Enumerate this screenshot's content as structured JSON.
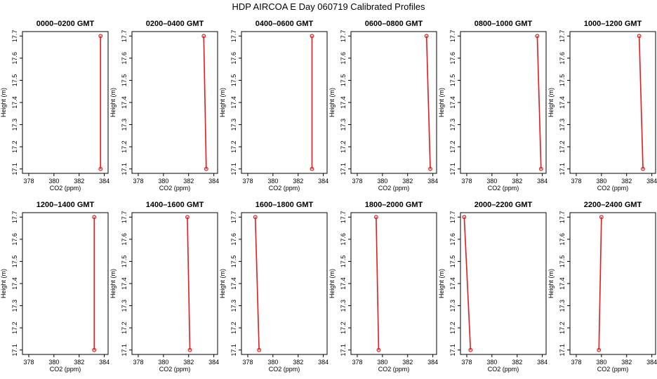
{
  "title": "HDP  AIRCOA E  Day 060719  Calibrated Profiles",
  "chart_data": [
    {
      "type": "line",
      "title": "0000–0200 GMT",
      "xlabel": "CO2 (ppm)",
      "ylabel": "Height (m)",
      "x": [
        383.7,
        383.7
      ],
      "y": [
        17.1,
        17.7
      ],
      "xlim": [
        377.5,
        384.3
      ],
      "ylim": [
        17.08,
        17.72
      ]
    },
    {
      "type": "line",
      "title": "0200–0400 GMT",
      "xlabel": "CO2 (ppm)",
      "ylabel": "Height (m)",
      "x": [
        383.4,
        383.2
      ],
      "y": [
        17.1,
        17.7
      ],
      "xlim": [
        377.5,
        384.3
      ],
      "ylim": [
        17.08,
        17.72
      ]
    },
    {
      "type": "line",
      "title": "0400–0600 GMT",
      "xlabel": "CO2 (ppm)",
      "ylabel": "Height (m)",
      "x": [
        383.1,
        383.1
      ],
      "y": [
        17.1,
        17.7
      ],
      "xlim": [
        377.5,
        384.3
      ],
      "ylim": [
        17.08,
        17.72
      ]
    },
    {
      "type": "line",
      "title": "0600–0800 GMT",
      "xlabel": "CO2 (ppm)",
      "ylabel": "Height (m)",
      "x": [
        383.8,
        383.5
      ],
      "y": [
        17.1,
        17.7
      ],
      "xlim": [
        377.5,
        384.3
      ],
      "ylim": [
        17.08,
        17.72
      ]
    },
    {
      "type": "line",
      "title": "0800–1000 GMT",
      "xlabel": "CO2 (ppm)",
      "ylabel": "Height (m)",
      "x": [
        383.9,
        383.6
      ],
      "y": [
        17.1,
        17.7
      ],
      "xlim": [
        377.5,
        384.3
      ],
      "ylim": [
        17.08,
        17.72
      ]
    },
    {
      "type": "line",
      "title": "1000–1200 GMT",
      "xlabel": "CO2 (ppm)",
      "ylabel": "Height (m)",
      "x": [
        383.3,
        383.0
      ],
      "y": [
        17.1,
        17.7
      ],
      "xlim": [
        377.5,
        384.3
      ],
      "ylim": [
        17.08,
        17.72
      ]
    },
    {
      "type": "line",
      "title": "1200–1400 GMT",
      "xlabel": "CO2 (ppm)",
      "ylabel": "Height (m)",
      "x": [
        383.2,
        383.2
      ],
      "y": [
        17.1,
        17.7
      ],
      "xlim": [
        377.5,
        384.3
      ],
      "ylim": [
        17.08,
        17.72
      ]
    },
    {
      "type": "line",
      "title": "1400–1600 GMT",
      "xlabel": "CO2 (ppm)",
      "ylabel": "Height (m)",
      "x": [
        382.1,
        381.9
      ],
      "y": [
        17.1,
        17.7
      ],
      "xlim": [
        377.5,
        384.3
      ],
      "ylim": [
        17.08,
        17.72
      ]
    },
    {
      "type": "line",
      "title": "1600–1800 GMT",
      "xlabel": "CO2 (ppm)",
      "ylabel": "Height (m)",
      "x": [
        378.9,
        378.6
      ],
      "y": [
        17.1,
        17.7
      ],
      "xlim": [
        377.5,
        384.3
      ],
      "ylim": [
        17.08,
        17.72
      ]
    },
    {
      "type": "line",
      "title": "1800–2000 GMT",
      "xlabel": "CO2 (ppm)",
      "ylabel": "Height (m)",
      "x": [
        379.7,
        379.5
      ],
      "y": [
        17.1,
        17.7
      ],
      "xlim": [
        377.5,
        384.3
      ],
      "ylim": [
        17.08,
        17.72
      ]
    },
    {
      "type": "line",
      "title": "2000–2200 GMT",
      "xlabel": "CO2 (ppm)",
      "ylabel": "Height (m)",
      "x": [
        378.3,
        377.8
      ],
      "y": [
        17.1,
        17.7
      ],
      "xlim": [
        377.5,
        384.3
      ],
      "ylim": [
        17.08,
        17.72
      ]
    },
    {
      "type": "line",
      "title": "2200–2400 GMT",
      "xlabel": "CO2 (ppm)",
      "ylabel": "Height (m)",
      "x": [
        379.8,
        380.0
      ],
      "y": [
        17.1,
        17.7
      ],
      "xlim": [
        377.5,
        384.3
      ],
      "ylim": [
        17.08,
        17.72
      ]
    }
  ],
  "axes": {
    "x_ticks": [
      378,
      380,
      382,
      384
    ],
    "y_ticks": [
      "17.1",
      "17.2",
      "17.3",
      "17.4",
      "17.5",
      "17.6",
      "17.7"
    ]
  },
  "colors": {
    "series": "#e41a1c",
    "axis": "#000000",
    "background": "#ffffff"
  },
  "marker": "open-circle"
}
